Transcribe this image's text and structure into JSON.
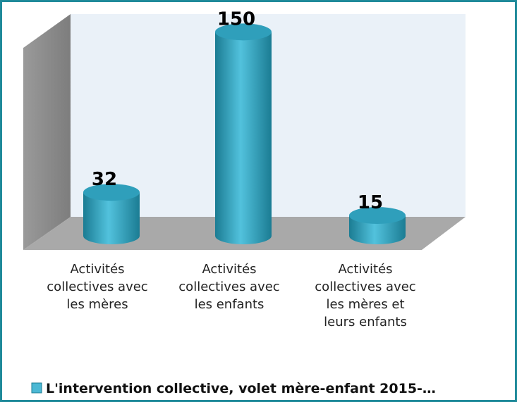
{
  "chart_data": {
    "type": "bar",
    "categories": [
      "Activités collectives avec les mères",
      "Activités collectives avec les enfants",
      "Activités collectives avec les mères et leurs enfants"
    ],
    "series": [
      {
        "name": "L'intervention collective, volet mère-enfant 2015-…",
        "color": "#4bb8d4",
        "values": [
          32,
          150,
          15
        ]
      }
    ],
    "ylim": [
      0,
      160
    ]
  }
}
